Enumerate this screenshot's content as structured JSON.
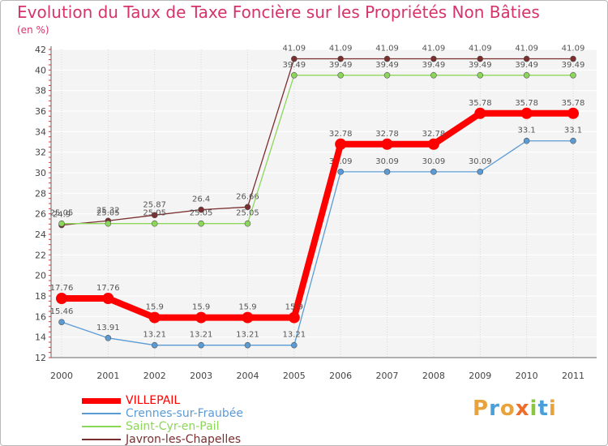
{
  "title": "Evolution du Taux de Taxe Foncière sur les Propriétés Non Bâties",
  "unit_label": "(en %)",
  "logo": {
    "letters": [
      "P",
      "r",
      "o",
      "x",
      "i",
      "t",
      "i"
    ],
    "colors": [
      "#e8a33d",
      "#4a9fd8",
      "#e8a33d",
      "#ef6d2a",
      "#8cc63f",
      "#4a9fd8",
      "#e8a33d"
    ]
  },
  "chart_data": {
    "type": "line",
    "title": "Evolution du Taux de Taxe Foncière sur les Propriétés Non Bâties",
    "ylabel": "(en %)",
    "xlabel": "",
    "x": [
      "2000",
      "2001",
      "2002",
      "2003",
      "2004",
      "2005",
      "2006",
      "2007",
      "2008",
      "2009",
      "2010",
      "2011"
    ],
    "ylim": [
      12,
      42
    ],
    "yticks": [
      12,
      14,
      16,
      18,
      20,
      22,
      24,
      26,
      28,
      30,
      32,
      34,
      36,
      38,
      40,
      42
    ],
    "grid": true,
    "legend_position": "bottom-left",
    "series": [
      {
        "name": "Javron-les-Chapelles",
        "color": "#7a2e2e",
        "values": [
          24.9,
          25.32,
          25.87,
          26.4,
          26.66,
          41.09,
          41.09,
          41.09,
          41.09,
          41.09,
          41.09,
          41.09
        ],
        "labels": [
          "24.9",
          "25.32",
          "25.87",
          "26.4",
          "26.66",
          "41.09",
          "41.09",
          "41.09",
          "41.09",
          "41.09",
          "41.09",
          "41.09"
        ]
      },
      {
        "name": "Saint-Cyr-en-Pail",
        "color": "#8cd65a",
        "values": [
          25.05,
          25.05,
          25.05,
          25.05,
          25.05,
          39.49,
          39.49,
          39.49,
          39.49,
          39.49,
          39.49,
          39.49
        ],
        "labels": [
          "25.05",
          "25.05",
          "25.05",
          "25.05",
          "25.05",
          "39.49",
          "39.49",
          "39.49",
          "39.49",
          "39.49",
          "39.49",
          "39.49"
        ]
      },
      {
        "name": "Crennes-sur-Fraubée",
        "color": "#5b9bd5",
        "values": [
          15.46,
          13.91,
          13.21,
          13.21,
          13.21,
          13.21,
          30.09,
          30.09,
          30.09,
          30.09,
          33.1,
          33.1
        ],
        "labels": [
          "15.46",
          "13.91",
          "13.21",
          "13.21",
          "13.21",
          "13.21",
          "30.09",
          "30.09",
          "30.09",
          "30.09",
          "33.1",
          "33.1"
        ]
      },
      {
        "name": "VILLEPAIL",
        "color": "#ff0000",
        "values": [
          17.76,
          17.76,
          15.9,
          15.9,
          15.9,
          15.9,
          32.78,
          32.78,
          32.78,
          35.78,
          35.78,
          35.78
        ],
        "labels": [
          "17.76",
          "17.76",
          "15.9",
          "15.9",
          "15.9",
          "15.9",
          "32.78",
          "32.78",
          "32.78",
          "35.78",
          "35.78",
          "35.78"
        ]
      }
    ],
    "legend_order": [
      "VILLEPAIL",
      "Crennes-sur-Fraubée",
      "Saint-Cyr-en-Pail",
      "Javron-les-Chapelles"
    ]
  }
}
